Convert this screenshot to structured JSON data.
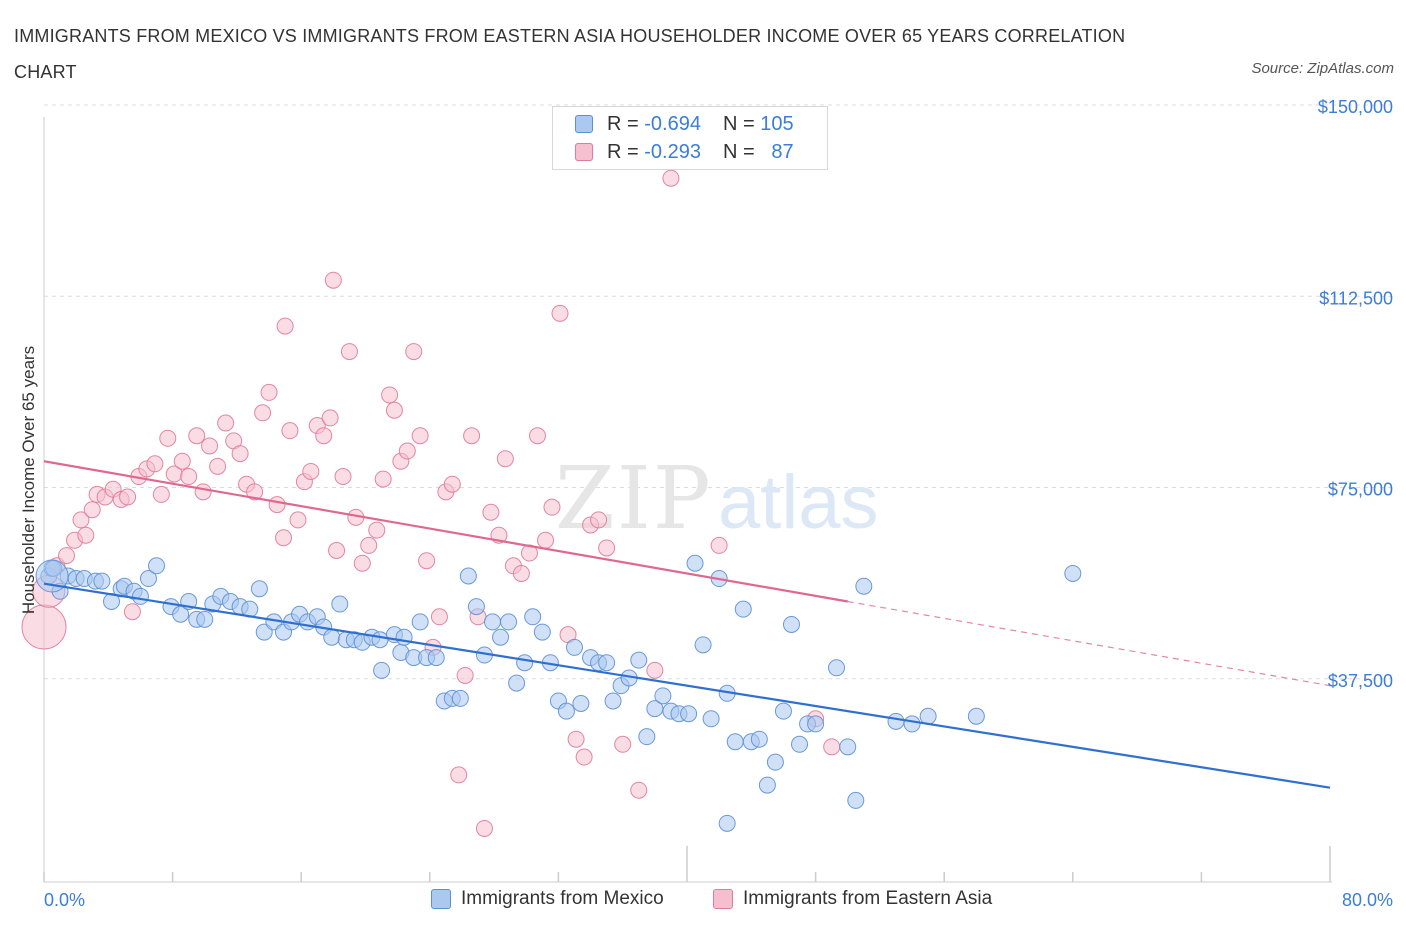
{
  "title": "IMMIGRANTS FROM MEXICO VS IMMIGRANTS FROM EASTERN ASIA HOUSEHOLDER INCOME OVER 65 YEARS CORRELATION CHART",
  "source": "Source: ZipAtlas.com",
  "watermark": {
    "zip": "ZIP",
    "atlas": "atlas"
  },
  "legend": {
    "rows": [
      {
        "r_label": "R =",
        "r_value": "-0.694",
        "n_label": "N =",
        "n_value": "105",
        "color": "#aac8f0",
        "border": "#5b8fd6"
      },
      {
        "r_label": "R =",
        "r_value": "-0.293",
        "n_label": "N =",
        "n_value": "87",
        "color": "#f5bfd0",
        "border": "#e07a9a"
      }
    ]
  },
  "bottom_legend": [
    "Immigrants from Mexico",
    "Immigrants from Eastern Asia"
  ],
  "chart_data": {
    "type": "scatter",
    "title": "IMMIGRANTS FROM MEXICO VS IMMIGRANTS FROM EASTERN ASIA HOUSEHOLDER INCOME OVER 65 YEARS CORRELATION CHART",
    "xlabel": "",
    "ylabel": "Householder Income Over 65 years",
    "xlim": [
      0,
      80
    ],
    "ylim": [
      0,
      150000
    ],
    "x_tick_labels": [
      "0.0%",
      "80.0%"
    ],
    "y_ticks": [
      37500,
      75000,
      112500,
      150000
    ],
    "y_tick_labels": [
      "$37,500",
      "$75,000",
      "$112,500",
      "$150,000"
    ],
    "grid": true,
    "series": [
      {
        "name": "Immigrants from Mexico",
        "color": "#5b8fd6",
        "fill": "#aac8f0",
        "trend": {
          "x0": 0,
          "y0": 58500,
          "x1": 80,
          "y1": 18500
        },
        "points": [
          [
            0.3,
            60000
          ],
          [
            0.5,
            61500
          ],
          [
            0.6,
            61500
          ],
          [
            1.0,
            57000
          ],
          [
            1.5,
            60000
          ],
          [
            2.0,
            59500
          ],
          [
            2.5,
            59500
          ],
          [
            3.2,
            59000
          ],
          [
            3.6,
            59000
          ],
          [
            4.2,
            55000
          ],
          [
            4.8,
            57500
          ],
          [
            5.0,
            58000
          ],
          [
            5.6,
            57000
          ],
          [
            6.0,
            56000
          ],
          [
            6.5,
            59500
          ],
          [
            7.0,
            62000
          ],
          [
            7.9,
            54000
          ],
          [
            8.5,
            52500
          ],
          [
            9.0,
            55000
          ],
          [
            9.5,
            51500
          ],
          [
            10.0,
            51500
          ],
          [
            10.5,
            54500
          ],
          [
            11.0,
            56000
          ],
          [
            11.6,
            55000
          ],
          [
            12.2,
            54000
          ],
          [
            12.8,
            53500
          ],
          [
            13.4,
            57500
          ],
          [
            13.7,
            49000
          ],
          [
            14.3,
            51000
          ],
          [
            14.9,
            49000
          ],
          [
            15.4,
            51000
          ],
          [
            15.9,
            52500
          ],
          [
            16.4,
            51000
          ],
          [
            17.0,
            52000
          ],
          [
            17.4,
            50000
          ],
          [
            17.9,
            48000
          ],
          [
            18.4,
            54500
          ],
          [
            18.8,
            47500
          ],
          [
            19.3,
            47500
          ],
          [
            19.8,
            47000
          ],
          [
            20.4,
            48000
          ],
          [
            20.9,
            47500
          ],
          [
            21.0,
            41500
          ],
          [
            21.8,
            48500
          ],
          [
            22.2,
            45000
          ],
          [
            22.4,
            48000
          ],
          [
            23.0,
            44000
          ],
          [
            23.4,
            51000
          ],
          [
            23.8,
            44000
          ],
          [
            24.4,
            44000
          ],
          [
            24.9,
            35500
          ],
          [
            25.4,
            36000
          ],
          [
            25.9,
            36000
          ],
          [
            26.4,
            60000
          ],
          [
            26.9,
            54000
          ],
          [
            27.4,
            44500
          ],
          [
            27.9,
            51000
          ],
          [
            28.4,
            48000
          ],
          [
            28.9,
            51000
          ],
          [
            29.4,
            39000
          ],
          [
            29.9,
            43000
          ],
          [
            30.4,
            52000
          ],
          [
            31.0,
            49000
          ],
          [
            31.5,
            43000
          ],
          [
            32.0,
            35500
          ],
          [
            32.5,
            33500
          ],
          [
            33.0,
            46000
          ],
          [
            33.4,
            35000
          ],
          [
            34.0,
            44000
          ],
          [
            34.5,
            43000
          ],
          [
            35.0,
            43000
          ],
          [
            35.4,
            35500
          ],
          [
            35.9,
            38500
          ],
          [
            36.4,
            40000
          ],
          [
            37.0,
            43500
          ],
          [
            37.5,
            28500
          ],
          [
            38.0,
            34000
          ],
          [
            38.5,
            36500
          ],
          [
            39.0,
            33500
          ],
          [
            39.5,
            33000
          ],
          [
            40.1,
            33000
          ],
          [
            40.5,
            62500
          ],
          [
            41.0,
            46500
          ],
          [
            41.5,
            32000
          ],
          [
            42.0,
            59500
          ],
          [
            42.5,
            37000
          ],
          [
            43.0,
            27500
          ],
          [
            43.5,
            53500
          ],
          [
            44.0,
            27500
          ],
          [
            44.5,
            28000
          ],
          [
            45.0,
            19000
          ],
          [
            45.5,
            23500
          ],
          [
            46.0,
            33500
          ],
          [
            46.5,
            50500
          ],
          [
            47.0,
            27000
          ],
          [
            47.5,
            31000
          ],
          [
            48.0,
            31000
          ],
          [
            49.3,
            42000
          ],
          [
            50.0,
            26500
          ],
          [
            50.5,
            16000
          ],
          [
            51.0,
            58000
          ],
          [
            53.0,
            31500
          ],
          [
            54.0,
            31000
          ],
          [
            55.0,
            32500
          ],
          [
            58.0,
            32500
          ],
          [
            64.0,
            60500
          ],
          [
            42.5,
            11500
          ]
        ],
        "large_points": [
          [
            0.5,
            60000,
            16
          ]
        ]
      },
      {
        "name": "Immigrants from Eastern Asia",
        "color": "#e07a9a",
        "fill": "#f5bfd0",
        "trend": {
          "x0": 0,
          "y0": 82500,
          "x1": 50,
          "y1": 55000,
          "dash_x1": 80,
          "dash_y1": 38500
        },
        "points": [
          [
            0.8,
            62000
          ],
          [
            1.4,
            64000
          ],
          [
            1.9,
            67000
          ],
          [
            2.3,
            71000
          ],
          [
            2.6,
            68000
          ],
          [
            3.0,
            73000
          ],
          [
            3.3,
            76000
          ],
          [
            3.8,
            75500
          ],
          [
            4.3,
            77000
          ],
          [
            4.8,
            75000
          ],
          [
            5.2,
            75500
          ],
          [
            5.5,
            53000
          ],
          [
            5.9,
            79500
          ],
          [
            6.4,
            81000
          ],
          [
            6.9,
            82000
          ],
          [
            7.3,
            76000
          ],
          [
            7.7,
            87000
          ],
          [
            8.1,
            80000
          ],
          [
            8.6,
            82500
          ],
          [
            9.0,
            79500
          ],
          [
            9.5,
            87500
          ],
          [
            9.9,
            76500
          ],
          [
            10.3,
            85500
          ],
          [
            10.8,
            81500
          ],
          [
            11.3,
            90000
          ],
          [
            11.8,
            86500
          ],
          [
            12.2,
            84000
          ],
          [
            12.6,
            78000
          ],
          [
            13.1,
            76500
          ],
          [
            13.6,
            92000
          ],
          [
            14.0,
            96000
          ],
          [
            14.5,
            74000
          ],
          [
            14.9,
            67500
          ],
          [
            15.3,
            88500
          ],
          [
            15.8,
            71000
          ],
          [
            16.2,
            78500
          ],
          [
            16.6,
            80500
          ],
          [
            17.0,
            89500
          ],
          [
            17.4,
            87500
          ],
          [
            17.8,
            91000
          ],
          [
            18.2,
            65000
          ],
          [
            18.6,
            79500
          ],
          [
            19.0,
            104000
          ],
          [
            19.4,
            71500
          ],
          [
            19.8,
            62500
          ],
          [
            20.2,
            66000
          ],
          [
            20.7,
            69000
          ],
          [
            21.1,
            79000
          ],
          [
            21.5,
            95500
          ],
          [
            21.8,
            92500
          ],
          [
            22.2,
            82500
          ],
          [
            22.6,
            84500
          ],
          [
            23.0,
            104000
          ],
          [
            23.4,
            87500
          ],
          [
            23.8,
            63000
          ],
          [
            24.2,
            46000
          ],
          [
            24.6,
            52000
          ],
          [
            25.0,
            76500
          ],
          [
            25.4,
            78000
          ],
          [
            25.8,
            21000
          ],
          [
            26.2,
            40500
          ],
          [
            26.6,
            87500
          ],
          [
            27.0,
            52000
          ],
          [
            27.4,
            10500
          ],
          [
            27.8,
            72500
          ],
          [
            28.3,
            68000
          ],
          [
            28.7,
            83000
          ],
          [
            29.2,
            62000
          ],
          [
            29.7,
            60500
          ],
          [
            30.2,
            64500
          ],
          [
            30.7,
            87500
          ],
          [
            31.2,
            67000
          ],
          [
            31.6,
            73500
          ],
          [
            32.1,
            111500
          ],
          [
            32.6,
            48500
          ],
          [
            33.1,
            28000
          ],
          [
            33.6,
            24500
          ],
          [
            34.0,
            70000
          ],
          [
            34.5,
            71000
          ],
          [
            35.0,
            65500
          ],
          [
            36.0,
            27000
          ],
          [
            37.0,
            18000
          ],
          [
            38.0,
            41500
          ],
          [
            39.0,
            138000
          ],
          [
            42.0,
            66000
          ],
          [
            48.0,
            32000
          ],
          [
            49.0,
            26500
          ],
          [
            15.0,
            109000
          ],
          [
            18.0,
            118000
          ]
        ],
        "large_points": [
          [
            0,
            50000,
            22
          ],
          [
            0.3,
            57000,
            16
          ]
        ]
      }
    ]
  }
}
